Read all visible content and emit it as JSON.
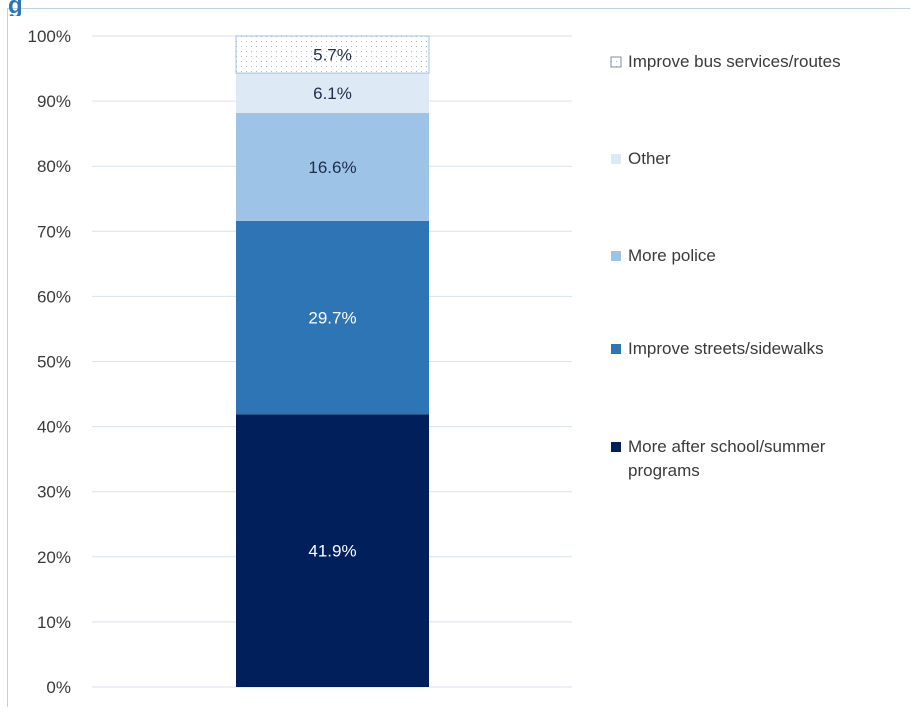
{
  "chart_data": {
    "type": "bar",
    "stacked": true,
    "categories": [
      ""
    ],
    "ylim": [
      0,
      100
    ],
    "ytick_labels": [
      "0%",
      "10%",
      "20%",
      "30%",
      "40%",
      "50%",
      "60%",
      "70%",
      "80%",
      "90%",
      "100%"
    ],
    "grid": true,
    "legend_position": "right",
    "series": [
      {
        "name": "More after school/summer programs",
        "values": [
          41.9
        ],
        "label": "41.9%",
        "color": "#001f5b",
        "label_color": "#ffffff",
        "pattern": "solid"
      },
      {
        "name": "Improve streets/sidewalks",
        "values": [
          29.7
        ],
        "label": "29.7%",
        "color": "#2e75b6",
        "label_color": "#ffffff",
        "pattern": "solid"
      },
      {
        "name": "More police",
        "values": [
          16.6
        ],
        "label": "16.6%",
        "color": "#9dc3e6",
        "label_color": "#1f2d4a",
        "pattern": "solid"
      },
      {
        "name": "Other",
        "values": [
          6.1
        ],
        "label": "6.1%",
        "color": "#dde9f5",
        "label_color": "#1f2d4a",
        "pattern": "solid"
      },
      {
        "name": "Improve bus services/routes",
        "values": [
          5.7
        ],
        "label": "5.7%",
        "color": "#ffffff",
        "label_color": "#1f2d4a",
        "pattern": "dotted"
      }
    ],
    "legend": [
      {
        "lines": [
          "Improve bus services/routes"
        ],
        "pattern": "dotted",
        "color": "#ffffff"
      },
      {
        "lines": [
          "Other"
        ],
        "pattern": "solid",
        "color": "#dde9f5"
      },
      {
        "lines": [
          "More police"
        ],
        "pattern": "solid",
        "color": "#9dc3e6"
      },
      {
        "lines": [
          "Improve streets/sidewalks"
        ],
        "pattern": "solid",
        "color": "#2e75b6"
      },
      {
        "lines": [
          "More after school/summer",
          "programs"
        ],
        "pattern": "solid",
        "color": "#001f5b"
      }
    ],
    "colors": {
      "grid": "#d9e2ec",
      "dot_border": "#9dc3e6",
      "dot": "#9aa7b8"
    }
  }
}
